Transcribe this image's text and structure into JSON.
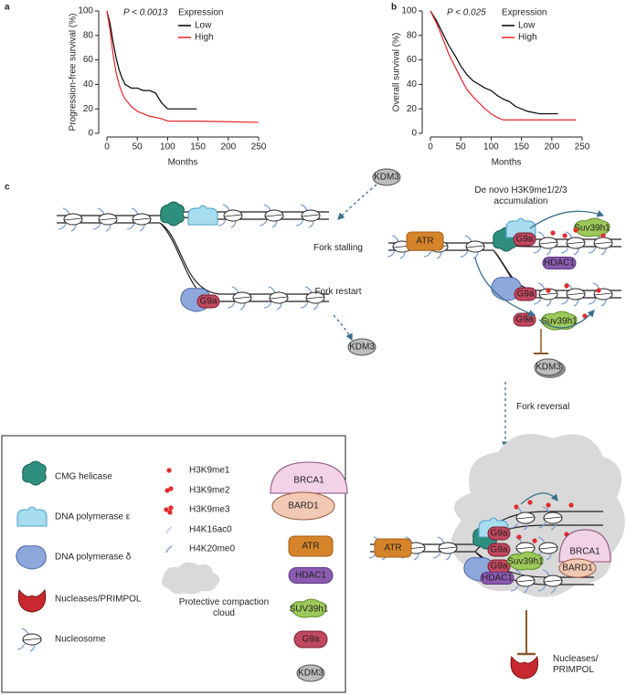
{
  "chart_data": [
    {
      "type": "line",
      "panel_label": "a",
      "annotation": "P < 0.0013",
      "xlabel": "Months",
      "ylabel": "Progression-free survival (%)",
      "legend_title": "Expression",
      "legend": "upper right",
      "x": [
        0,
        5,
        10,
        15,
        20,
        25,
        30,
        40,
        50,
        60,
        70,
        80,
        90,
        100,
        148,
        250
      ],
      "series": [
        {
          "name": "Low",
          "color": "#000000",
          "values": [
            100,
            90,
            75,
            62,
            52,
            45,
            40,
            37,
            37,
            35,
            35,
            33,
            25,
            20,
            20,
            null
          ]
        },
        {
          "name": "High",
          "color": "#e8262b",
          "values": [
            100,
            85,
            65,
            50,
            40,
            33,
            28,
            22,
            18,
            16,
            14,
            13,
            12,
            10,
            10,
            9
          ]
        }
      ],
      "xlim": [
        0,
        250
      ],
      "xticks": [
        0,
        50,
        100,
        150,
        200,
        250
      ],
      "ylim": [
        0,
        100
      ],
      "yticks": [
        0,
        20,
        40,
        60,
        80,
        100
      ]
    },
    {
      "type": "line",
      "panel_label": "b",
      "annotation": "P < 0.025",
      "xlabel": "Months",
      "ylabel": "Overall survival (%)",
      "legend_title": "Expression",
      "legend": "upper right",
      "x": [
        0,
        10,
        20,
        30,
        40,
        50,
        60,
        70,
        80,
        90,
        100,
        110,
        120,
        130,
        140,
        160,
        180,
        210,
        240
      ],
      "series": [
        {
          "name": "Low",
          "color": "#000000",
          "values": [
            100,
            92,
            82,
            72,
            64,
            55,
            48,
            43,
            40,
            37,
            35,
            31,
            28,
            26,
            22,
            18,
            16,
            16,
            null
          ]
        },
        {
          "name": "High",
          "color": "#e8262b",
          "values": [
            100,
            90,
            78,
            65,
            55,
            45,
            36,
            30,
            25,
            20,
            16,
            13,
            11,
            11,
            11,
            11,
            11,
            11,
            11
          ]
        }
      ],
      "xlim": [
        0,
        250
      ],
      "xticks": [
        0,
        50,
        100,
        150,
        200,
        250
      ],
      "ylim": [
        0,
        100
      ],
      "yticks": [
        0,
        20,
        40,
        60,
        80,
        100
      ]
    }
  ],
  "diagram": {
    "panel_label": "c",
    "kdm3": "KDM3",
    "fork_stalling": "Fork stalling",
    "fork_restart": "Fork restart",
    "accumulation": "De novo H3K9me1/2/3 accumulation",
    "fork_reversal": "Fork reversal",
    "atr": "ATR",
    "g9a": "G9a",
    "suv39h1": "Suv39h1",
    "hdac1": "HDAC1",
    "brca1": "BRCA1",
    "bard1": "BARD1",
    "nucleases": "Nucleases/ PRIMPOL"
  },
  "legend": {
    "items": [
      "CMG helicase",
      "DNA polymerase ε",
      "DNA polymerase δ",
      "Nucleases/PRIMPOL",
      "Nucleosome",
      "H3K9me1",
      "H3K9me2",
      "H3K9me3",
      "H4K16ac0",
      "H4K20me0",
      "Protective compaction cloud",
      "BRCA1",
      "BARD1",
      "ATR",
      "HDAC1",
      "SUV39h1",
      "G9a",
      "KDM3"
    ]
  }
}
